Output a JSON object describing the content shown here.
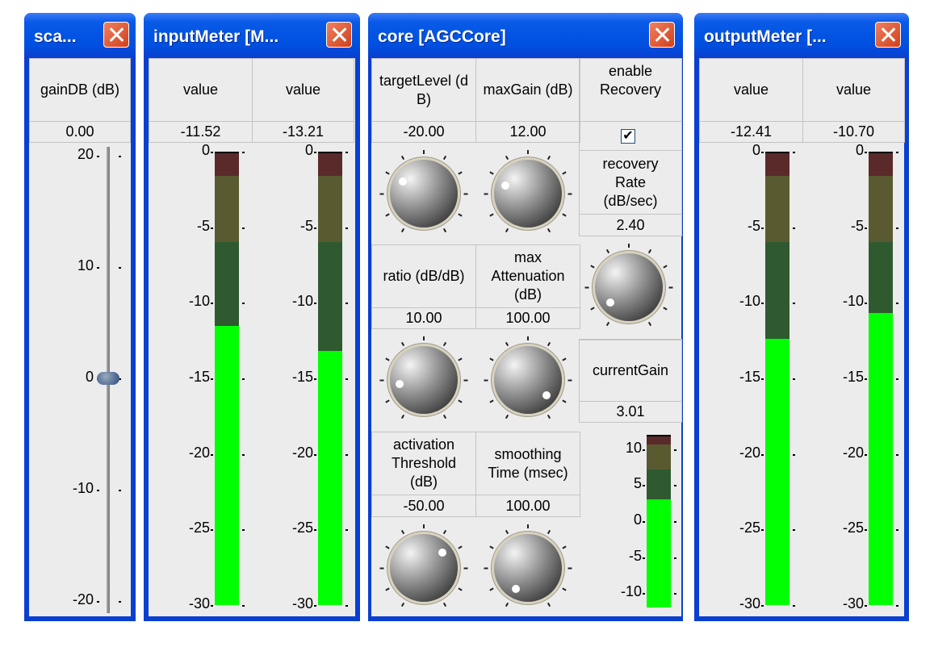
{
  "windows": [
    {
      "title": "sca...",
      "label": "gainDB (dB)",
      "value": "0.00",
      "scale": [
        "20",
        "10",
        "0",
        "-10",
        "-20"
      ]
    },
    {
      "title": "inputMeter [M...",
      "channels": [
        {
          "label": "value",
          "value": "-11.52",
          "level": -11.52
        },
        {
          "label": "value",
          "value": "-13.21",
          "level": -13.21
        }
      ]
    },
    {
      "title": "core [AGCCore]"
    },
    {
      "title": "outputMeter [...",
      "channels": [
        {
          "label": "value",
          "value": "-12.41",
          "level": -12.41
        },
        {
          "label": "value",
          "value": "-10.70",
          "level": -10.7
        }
      ]
    }
  ],
  "meter_scale": [
    "0",
    "-5",
    "-10",
    "-15",
    "-20",
    "-25",
    "-30"
  ],
  "core": {
    "params": [
      {
        "label": "targetLevel (d\nB)",
        "value": "-20.00"
      },
      {
        "label": "maxGain (dB)",
        "value": "12.00"
      },
      {
        "label": "ratio (dB/dB)",
        "value": "10.00"
      },
      {
        "label": "max\nAttenuation\n(dB)",
        "value": "100.00"
      },
      {
        "label": "activation\nThreshold\n(dB)",
        "value": "-50.00"
      },
      {
        "label": "smoothing\nTime (msec)",
        "value": "100.00"
      }
    ],
    "enable_recovery": {
      "label": "enable\nRecovery",
      "checked": true
    },
    "recovery_rate": {
      "label": "recovery\nRate\n(dB/sec)",
      "value": "2.40"
    },
    "current_gain": {
      "label": "currentGain",
      "value": "3.01",
      "level": 3.01,
      "scale": [
        "10",
        "5",
        "0",
        "-5",
        "-10"
      ]
    }
  },
  "colors": {
    "green": "#00ff00",
    "dark_green": "#2f5a30",
    "olive": "#5a5a30",
    "red": "#5a2a2a"
  }
}
